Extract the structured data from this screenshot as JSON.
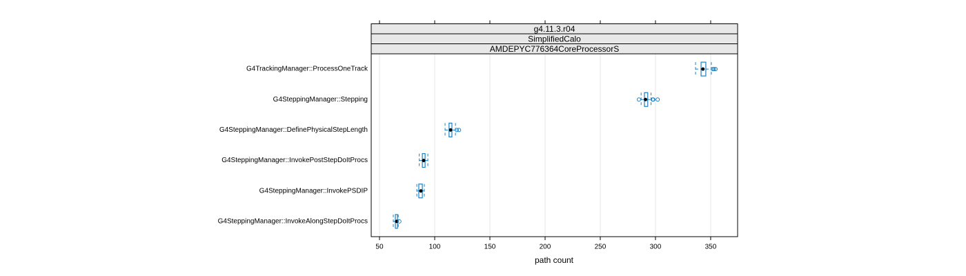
{
  "chart_data": {
    "type": "box",
    "strips": [
      "g4.11.3.r04",
      "SimplifiedCalo",
      "AMDEPYC776364CoreProcessorS"
    ],
    "xlabel": "path count",
    "categories": [
      "G4TrackingManager::ProcessOneTrack",
      "G4SteppingManager::Stepping",
      "G4SteppingManager::DefinePhysicalStepLength",
      "G4SteppingManager::InvokePostStepDoItProcs",
      "G4SteppingManager::InvokePSDIP",
      "G4SteppingManager::InvokeAlongStepDoItProcs"
    ],
    "boxes": [
      {
        "low": 336.3,
        "q1": 341.3,
        "median": 343,
        "q3": 345.6,
        "high": 350.6,
        "outliers": [
          352,
          353,
          354.4
        ]
      },
      {
        "low": 287,
        "q1": 290,
        "median": 291,
        "q3": 293,
        "high": 296,
        "outliers": [
          285,
          297.5,
          298,
          302
        ]
      },
      {
        "low": 109.4,
        "q1": 113,
        "median": 114.4,
        "q3": 115.6,
        "high": 118.8,
        "outliers": [
          120,
          122
        ]
      },
      {
        "low": 86,
        "q1": 88.8,
        "median": 90,
        "q3": 91.3,
        "high": 93.8,
        "outliers": []
      },
      {
        "low": 83.8,
        "q1": 85.6,
        "median": 87.5,
        "q3": 88.8,
        "high": 90.6,
        "outliers": []
      },
      {
        "low": 62.5,
        "q1": 64.4,
        "median": 65.6,
        "q3": 66.3,
        "high": 67,
        "outliers": [
          68
        ]
      }
    ],
    "color": "#1f7fbf",
    "xlim": [
      42.5,
      374.4
    ],
    "xticks": [
      50,
      100,
      150,
      200,
      250,
      300,
      350
    ],
    "grid": true
  }
}
